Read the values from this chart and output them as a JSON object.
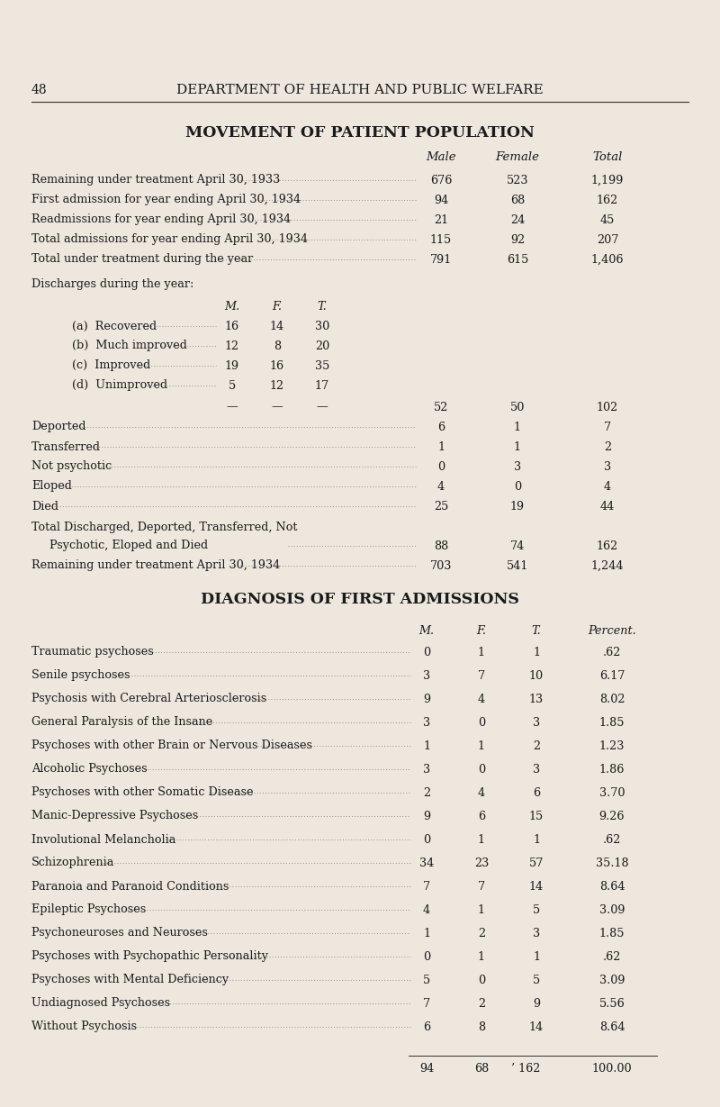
{
  "page_number": "48",
  "header": "DEPARTMENT OF HEALTH AND PUBLIC WELFARE",
  "title1": "MOVEMENT OF PATIENT POPULATION",
  "title2": "DIAGNOSIS OF FIRST ADMISSIONS",
  "bg_color": "#ede7dd",
  "text_color": "#1a1a1a",
  "section1_rows": [
    {
      "label": "Remaining under treatment April 30, 1933",
      "male": "676",
      "female": "523",
      "total": "1,199"
    },
    {
      "label": "First admission for year ending April 30, 1934",
      "male": "94",
      "female": "68",
      "total": "162"
    },
    {
      "label": "Readmissions for year ending April 30, 1934",
      "male": "21",
      "female": "24",
      "total": "45"
    },
    {
      "label": "Total admissions for year ending April 30, 1934",
      "male": "115",
      "female": "92",
      "total": "207"
    },
    {
      "label": "Total under treatment during the year",
      "male": "791",
      "female": "615",
      "total": "1,406"
    }
  ],
  "discharge_rows": [
    {
      "label": "(a)  Recovered",
      "m": "16",
      "f": "14",
      "t": "30"
    },
    {
      "label": "(b)  Much improved",
      "m": "12",
      "f": "8",
      "t": "20"
    },
    {
      "label": "(c)  Improved",
      "m": "19",
      "f": "16",
      "t": "35"
    },
    {
      "label": "(d)  Unimproved",
      "m": "5",
      "f": "12",
      "t": "17"
    }
  ],
  "discharge_total": {
    "male": "52",
    "female": "50",
    "total": "102"
  },
  "other_rows": [
    {
      "label": "Deported",
      "male": "6",
      "female": "1",
      "total": "7"
    },
    {
      "label": "Transferred",
      "male": "1",
      "female": "1",
      "total": "2"
    },
    {
      "label": "Not psychotic",
      "male": "0",
      "female": "3",
      "total": "3"
    },
    {
      "label": "Eloped",
      "male": "4",
      "female": "0",
      "total": "4"
    },
    {
      "label": "Died",
      "male": "25",
      "female": "19",
      "total": "44"
    }
  ],
  "total_discharged_l1": "Total Discharged, Deported, Transferred, Not",
  "total_discharged_l2": "    Psychotic, Eloped and Died",
  "total_discharged": {
    "male": "88",
    "female": "74",
    "total": "162"
  },
  "remaining_1934": {
    "label": "Remaining under treatment April 30, 1934",
    "male": "703",
    "female": "541",
    "total": "1,244"
  },
  "diagnosis_rows": [
    {
      "label": "Traumatic psychoses",
      "m": "0",
      "f": "1",
      "t": "1",
      "pct": ".62"
    },
    {
      "label": "Senile psychoses",
      "m": "3",
      "f": "7",
      "t": "10",
      "pct": "6.17"
    },
    {
      "label": "Psychosis with Cerebral Arteriosclerosis",
      "m": "9",
      "f": "4",
      "t": "13",
      "pct": "8.02"
    },
    {
      "label": "General Paralysis of the Insane",
      "m": "3",
      "f": "0",
      "t": "3",
      "pct": "1.85"
    },
    {
      "label": "Psychoses with other Brain or Nervous Diseases",
      "m": "1",
      "f": "1",
      "t": "2",
      "pct": "1.23"
    },
    {
      "label": "Alcoholic Psychoses",
      "m": "3",
      "f": "0",
      "t": "3",
      "pct": "1.86"
    },
    {
      "label": "Psychoses with other Somatic Disease",
      "m": "2",
      "f": "4",
      "t": "6",
      "pct": "3.70"
    },
    {
      "label": "Manic-Depressive Psychoses",
      "m": "9",
      "f": "6",
      "t": "15",
      "pct": "9.26"
    },
    {
      "label": "Involutional Melancholia",
      "m": "0",
      "f": "1",
      "t": "1",
      "pct": ".62"
    },
    {
      "label": "Schizophrenia",
      "m": "34",
      "f": "23",
      "t": "57",
      "pct": "35.18"
    },
    {
      "label": "Paranoia and Paranoid Conditions",
      "m": "7",
      "f": "7",
      "t": "14",
      "pct": "8.64"
    },
    {
      "label": "Epileptic Psychoses",
      "m": "4",
      "f": "1",
      "t": "5",
      "pct": "3.09"
    },
    {
      "label": "Psychoneuroses and Neuroses",
      "m": "1",
      "f": "2",
      "t": "3",
      "pct": "1.85"
    },
    {
      "label": "Psychoses with Psychopathic Personality",
      "m": "0",
      "f": "1",
      "t": "1",
      "pct": ".62"
    },
    {
      "label": "Psychoses with Mental Deficiency",
      "m": "5",
      "f": "0",
      "t": "5",
      "pct": "3.09"
    },
    {
      "label": "Undiagnosed Psychoses",
      "m": "7",
      "f": "2",
      "t": "9",
      "pct": "5.56"
    },
    {
      "label": "Without Psychosis",
      "m": "6",
      "f": "8",
      "t": "14",
      "pct": "8.64"
    }
  ],
  "diagnosis_total": {
    "m": "94",
    "f": "68",
    "t": "162",
    "pct": "100.00"
  }
}
